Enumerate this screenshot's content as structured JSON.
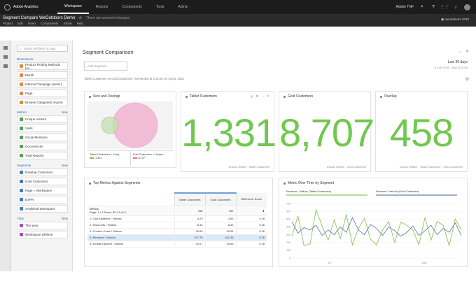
{
  "app": {
    "name": "Adobe Analytics",
    "nav": [
      "Workspace",
      "Reports",
      "Components",
      "Tools",
      "Admin"
    ],
    "active_nav": "Workspace",
    "company": "Adobe TNF"
  },
  "project": {
    "title": "Segment Compare WeOutdoors Demo",
    "unsaved": "There are unsaved changes",
    "menus": [
      "Project",
      "Edit",
      "Insert",
      "Components",
      "Share",
      "Help"
    ],
    "report_suite": "weoutdoors 2015"
  },
  "left_panel": {
    "search_placeholder": "Search all filters & tags",
    "dimensions": {
      "label": "Dimensions",
      "items": [
        "Product Finding Methods (ev...",
        "Month",
        "Internal Campaign (evar1)",
        "Page",
        "Browse Categories (evar4)"
      ]
    },
    "metrics": {
      "label": "Metrics",
      "new": "New",
      "items": [
        "Unique Visitors",
        "Visits",
        "Social Mentions",
        "Occurrences",
        "Total Reports"
      ]
    },
    "segments": {
      "label": "Segments",
      "new": "New",
      "items": [
        "Desktop Customers",
        "Gold Customers",
        "Page = Workspace",
        "ESPN",
        "Analytical Workspace"
      ]
    },
    "time": {
      "label": "Time",
      "new": "New",
      "items": [
        "This year",
        "Workspace Lifetime"
      ]
    }
  },
  "panel": {
    "title": "Segment Comparison",
    "add_segment": "Add Segment",
    "date_label": "Last 30 days",
    "date_range": "Jul 16 2015 – Aug 15 2015",
    "description": "Tablet Customers vs Gold Customers | Generated at 8:15 pm on Aug 5, 2015"
  },
  "cards": {
    "overlap": {
      "title": "Size and Overlap",
      "legend_a": "Tablet Customers + Uniq...",
      "value_a": "1,331",
      "legend_b": "Gold Customers + Unique...",
      "value_b": "8,707",
      "color_a": "#7bc45b",
      "color_b": "#e86aa0"
    },
    "tablet": {
      "title": "Tablet Customers",
      "value": "1,331",
      "caption": "Unique Visitors · Tablet Customers"
    },
    "gold": {
      "title": "Gold Customers",
      "value": "8,707",
      "caption": "Unique Visitors · Gold Customers"
    },
    "overlap_count": {
      "title": "Overlap",
      "value": "458",
      "caption": "Unique Visitors · Tablet Customers + Gold Customers"
    }
  },
  "table": {
    "title": "Top Metrics Against Segments",
    "columns": [
      "Tablet Customers",
      "Gold Customers",
      "Difference Score"
    ],
    "header_label": "Metrics",
    "header_page": "Page: 1 / 1",
    "header_rows": "Rows: 50  1-5 of 5",
    "totals": [
      "348",
      "402",
      ""
    ],
    "rows": [
      {
        "n": "1.",
        "label": "Cart Additions / Visitors",
        "a": "4.20",
        "b": "4.53",
        "d": "0.28"
      },
      {
        "n": "2.",
        "label": "Discounts / Visitors",
        "a": "8.40",
        "b": "8.40",
        "d": "0.26"
      },
      {
        "n": "3.",
        "label": "Product Costs / Visitors",
        "a": "99.06",
        "b": "99.54",
        "d": "0.26"
      },
      {
        "n": "4.",
        "label": "Revenue / Visitors",
        "a": "107.78",
        "b": "181.38",
        "d": "0.26"
      },
      {
        "n": "5.",
        "label": "Emails Opened / Visitors",
        "a": "29.07",
        "b": "25.63",
        "d": "0.18"
      }
    ]
  },
  "chart": {
    "title": "Metric Over Time by Segment",
    "chart_data": {
      "type": "line",
      "series": [
        {
          "name": "Revenue / Visitors (Tablet Customers)",
          "color": "#8ac660",
          "values": [
            280,
            540,
            160,
            180,
            620,
            410,
            230,
            490,
            250,
            560,
            170,
            380,
            510,
            240,
            170,
            360,
            470,
            200,
            460,
            420,
            360,
            170,
            520,
            230,
            470,
            420,
            160,
            500,
            360
          ]
        },
        {
          "name": "Revenue / Visitors (Gold Customers)",
          "color": "#6a7fa8",
          "values": [
            470,
            320,
            390,
            360,
            420,
            290,
            360,
            300,
            400,
            330,
            520,
            360,
            300,
            430,
            380,
            290,
            400,
            350,
            280,
            330,
            410,
            290,
            350,
            420,
            300,
            380,
            330,
            450,
            290
          ]
        }
      ],
      "y_ticks": [
        "700",
        "600",
        "500",
        "400",
        "300",
        "200",
        "100",
        "0"
      ],
      "x_ticks": [
        "Jul",
        "Aug"
      ],
      "ylim": [
        0,
        700
      ]
    }
  }
}
